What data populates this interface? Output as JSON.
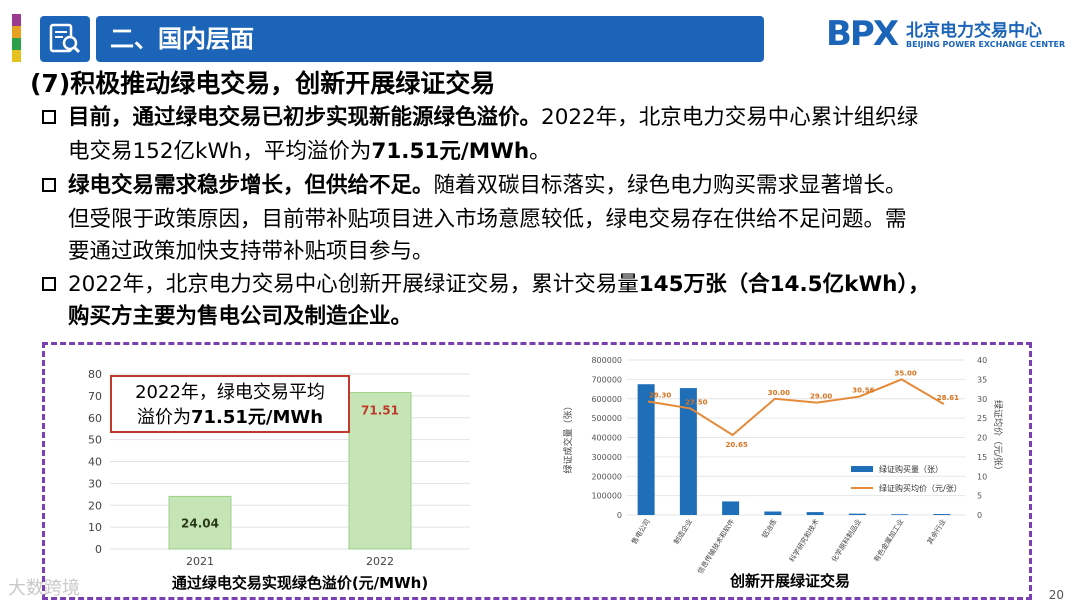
{
  "header": {
    "title": "二、国内层面",
    "logo_mark": "BPX",
    "logo_cn": "北京电力交易中心",
    "logo_en": "BEIJING POWER EXCHANGE CENTER",
    "accent_color": "#1b64b7"
  },
  "subtitle": "(7)积极推动绿电交易，创新开展绿证交易",
  "bullets": {
    "b1": {
      "l1_bold": "目前，通过绿电交易已初步实现新能源绿色溢价。",
      "l1_text": "2022年，北京电力交易中心累计组织绿",
      "l2_text": "电交易152亿kWh，平均溢价为",
      "l2_bold": "71.51元/MWh",
      "l2_end": "。"
    },
    "b2": {
      "l1_bold": "绿电交易需求稳步增长，但供给不足。",
      "l1_text": "随着双碳目标落实，绿色电力购买需求显著增长。",
      "l2_text": "但受限于政策原因，目前带补贴项目进入市场意愿较低，绿电交易存在供给不足问题。需",
      "l3_text": "要通过政策加快支持带补贴项目参与。"
    },
    "b3": {
      "l1_text": "2022年，北京电力交易中心创新开展绿证交易，累计交易量",
      "l1_bold": "145万张（合14.5亿kWh），",
      "l2_bold": "购买方主要为售电公司及制造企业。"
    }
  },
  "chart_data": [
    {
      "type": "bar",
      "title": "通过绿电交易实现绿色溢价(元/MWh)",
      "categories": [
        "2021",
        "2022"
      ],
      "values": [
        24.04,
        71.51
      ],
      "data_labels": [
        "24.04",
        "71.51"
      ],
      "ylim": [
        0,
        80
      ],
      "yticks": [
        0,
        10,
        20,
        30,
        40,
        50,
        60,
        70,
        80
      ],
      "grid": true,
      "bar_color": "#c6e5b6",
      "bar_border": "#9fcf88",
      "callout": {
        "line1": "2022年，绿电交易平均",
        "line2_text": "溢价为",
        "line2_bold": "71.51元/MWh",
        "border_color": "#c0392b"
      }
    },
    {
      "type": "bar",
      "title": "创新开展绿证交易",
      "categories": [
        "售电公司",
        "制造企业",
        "信息传输技术和软件",
        "铝冶炼",
        "科学研究和技术",
        "化学原料制品业",
        "有色金属加工业",
        "其余行业"
      ],
      "ylabel_left": "绿证成交量（张）",
      "ylabel_right": "绿证均价（元/张）",
      "ylim_left": [
        0,
        800000
      ],
      "yticks_left": [
        "0",
        "100000",
        "200000",
        "300000",
        "400000",
        "500000",
        "600000",
        "700000",
        "800000"
      ],
      "ylim_right": [
        0,
        40
      ],
      "yticks_right": [
        "0",
        "5",
        "10",
        "15",
        "20",
        "25",
        "30",
        "35",
        "40"
      ],
      "series": [
        {
          "name": "绿证购买量（张）",
          "kind": "bar",
          "color": "#1f6fb8",
          "values": [
            675000,
            655000,
            70000,
            18000,
            15000,
            7000,
            4000,
            5000
          ]
        },
        {
          "name": "绿证购买均价（元/张）",
          "kind": "line",
          "color": "#e58a3a",
          "values": [
            29.3,
            27.5,
            20.65,
            30.0,
            29.0,
            30.56,
            35.0,
            28.61
          ],
          "data_labels": [
            "29.30",
            "27.50",
            "20.65",
            "30.00",
            "29.00",
            "30.56",
            "35.00",
            "28.61"
          ]
        }
      ],
      "legend_position": "right"
    }
  ],
  "page_number": "20",
  "watermark": "大数跨境"
}
